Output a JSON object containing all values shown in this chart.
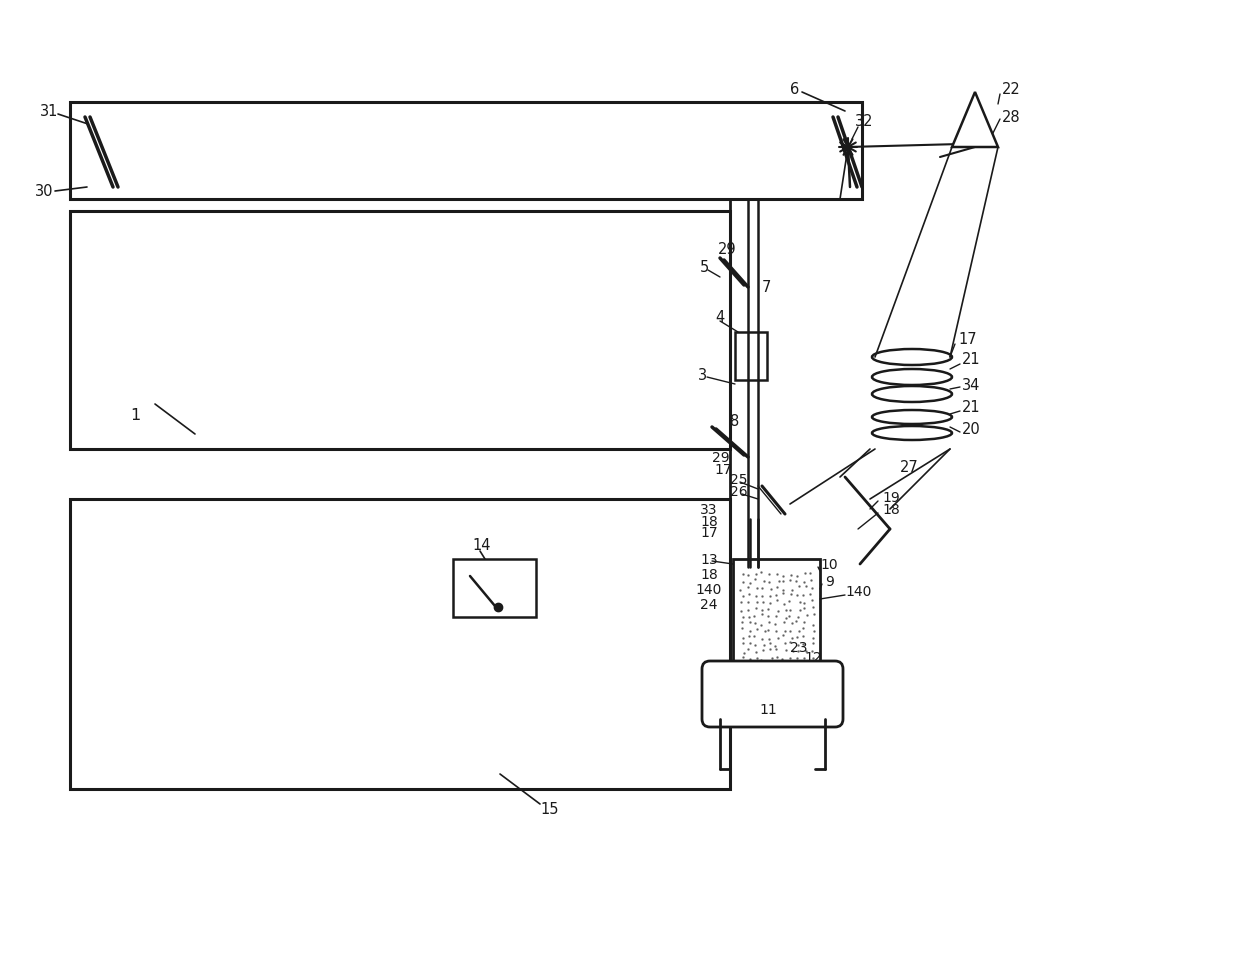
{
  "bg_color": "#ffffff",
  "line_color": "#1a1a1a",
  "fig_width": 12.4,
  "fig_height": 9.79
}
